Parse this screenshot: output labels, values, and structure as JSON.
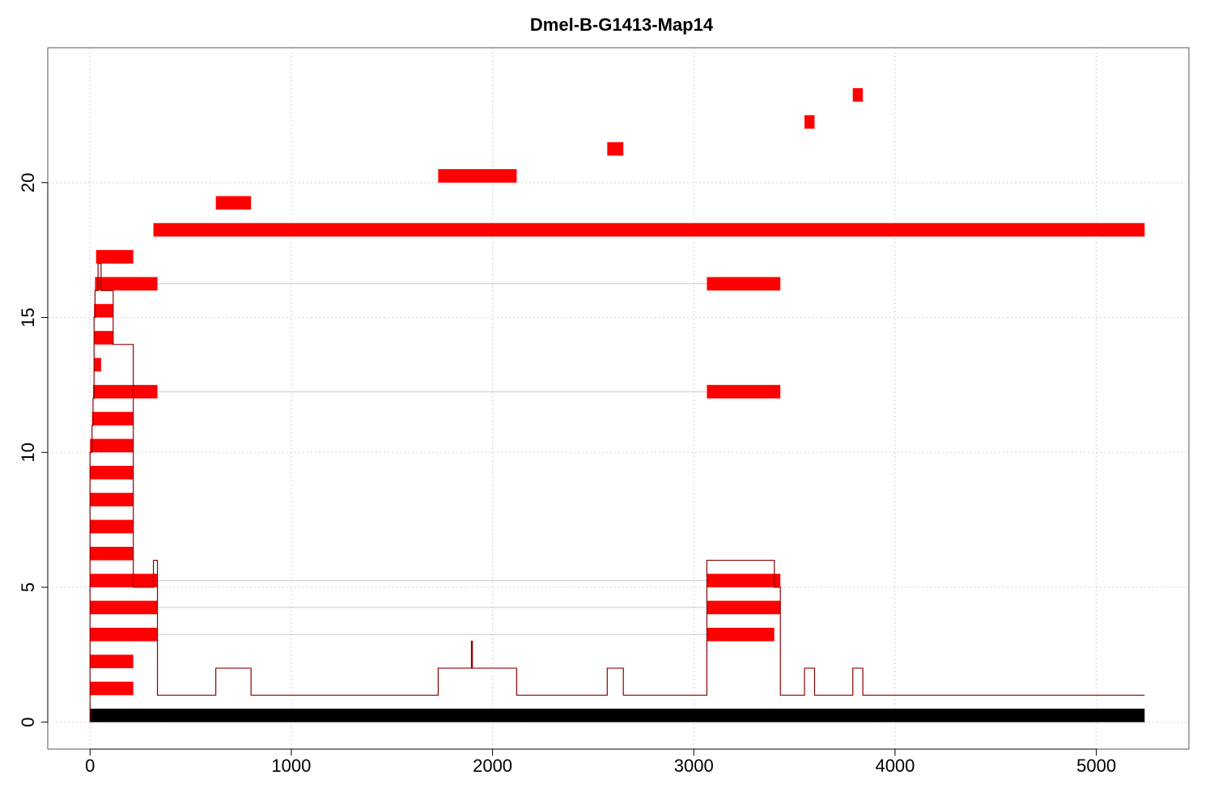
{
  "chart_data": {
    "type": "bar",
    "title": "Dmel-B-G1413-Map14",
    "xlabel": "",
    "ylabel": "",
    "xlim": [
      -210,
      5460
    ],
    "ylim": [
      -1,
      25
    ],
    "xticks": [
      0,
      1000,
      2000,
      3000,
      4000,
      5000
    ],
    "yticks": [
      0,
      5,
      10,
      15,
      20
    ],
    "grid": true,
    "colors": {
      "segment": "#ff0000",
      "baseline": "#000000",
      "coverage": "#8b0000",
      "hline": "#c8c8c8",
      "grid": "#d3d3d3"
    },
    "baseline": {
      "start": 0,
      "end": 5240,
      "y": 0.25,
      "height": 0.5
    },
    "segments": [
      {
        "start": 0,
        "end": 215,
        "y": 1.25
      },
      {
        "start": 0,
        "end": 215,
        "y": 2.25
      },
      {
        "start": 0,
        "end": 335,
        "y": 3.25
      },
      {
        "start": 3065,
        "end": 3400,
        "y": 3.25
      },
      {
        "start": 0,
        "end": 335,
        "y": 4.25
      },
      {
        "start": 3065,
        "end": 3430,
        "y": 4.25
      },
      {
        "start": 0,
        "end": 335,
        "y": 5.25
      },
      {
        "start": 3065,
        "end": 3430,
        "y": 5.25
      },
      {
        "start": 0,
        "end": 215,
        "y": 6.25
      },
      {
        "start": 0,
        "end": 215,
        "y": 7.25
      },
      {
        "start": 0,
        "end": 215,
        "y": 8.25
      },
      {
        "start": 0,
        "end": 215,
        "y": 9.25
      },
      {
        "start": 0,
        "end": 215,
        "y": 10.25
      },
      {
        "start": 10,
        "end": 215,
        "y": 11.25
      },
      {
        "start": 15,
        "end": 335,
        "y": 12.25
      },
      {
        "start": 3065,
        "end": 3430,
        "y": 12.25
      },
      {
        "start": 20,
        "end": 55,
        "y": 13.25
      },
      {
        "start": 20,
        "end": 115,
        "y": 14.25
      },
      {
        "start": 20,
        "end": 115,
        "y": 15.25
      },
      {
        "start": 25,
        "end": 335,
        "y": 16.25
      },
      {
        "start": 3065,
        "end": 3430,
        "y": 16.25
      },
      {
        "start": 30,
        "end": 215,
        "y": 17.25
      },
      {
        "start": 315,
        "end": 5240,
        "y": 18.25
      },
      {
        "start": 625,
        "end": 800,
        "y": 19.25
      },
      {
        "start": 1730,
        "end": 2120,
        "y": 20.25
      },
      {
        "start": 2570,
        "end": 2650,
        "y": 21.25
      },
      {
        "start": 3550,
        "end": 3600,
        "y": 22.25
      },
      {
        "start": 3790,
        "end": 3840,
        "y": 23.25
      }
    ],
    "hlines": [
      {
        "from": 335,
        "to": 3065,
        "y": 3.25
      },
      {
        "from": 335,
        "to": 3065,
        "y": 4.25
      },
      {
        "from": 335,
        "to": 3065,
        "y": 5.25
      },
      {
        "from": 335,
        "to": 3065,
        "y": 12.25
      },
      {
        "from": 335,
        "to": 3065,
        "y": 16.25
      }
    ],
    "coverage": [
      [
        0,
        0
      ],
      [
        0,
        10
      ],
      [
        10,
        11
      ],
      [
        15,
        12
      ],
      [
        20,
        15
      ],
      [
        25,
        16
      ],
      [
        30,
        16
      ],
      [
        40,
        17
      ],
      [
        55,
        16
      ],
      [
        115,
        14
      ],
      [
        215,
        5
      ],
      [
        315,
        6
      ],
      [
        335,
        1
      ],
      [
        625,
        2
      ],
      [
        800,
        1
      ],
      [
        1730,
        2
      ],
      [
        1895,
        3
      ],
      [
        1900,
        2
      ],
      [
        2120,
        1
      ],
      [
        2570,
        2
      ],
      [
        2650,
        1
      ],
      [
        3065,
        6
      ],
      [
        3400,
        5
      ],
      [
        3430,
        1
      ],
      [
        3550,
        2
      ],
      [
        3600,
        1
      ],
      [
        3790,
        2
      ],
      [
        3840,
        1
      ],
      [
        5240,
        1
      ]
    ]
  }
}
